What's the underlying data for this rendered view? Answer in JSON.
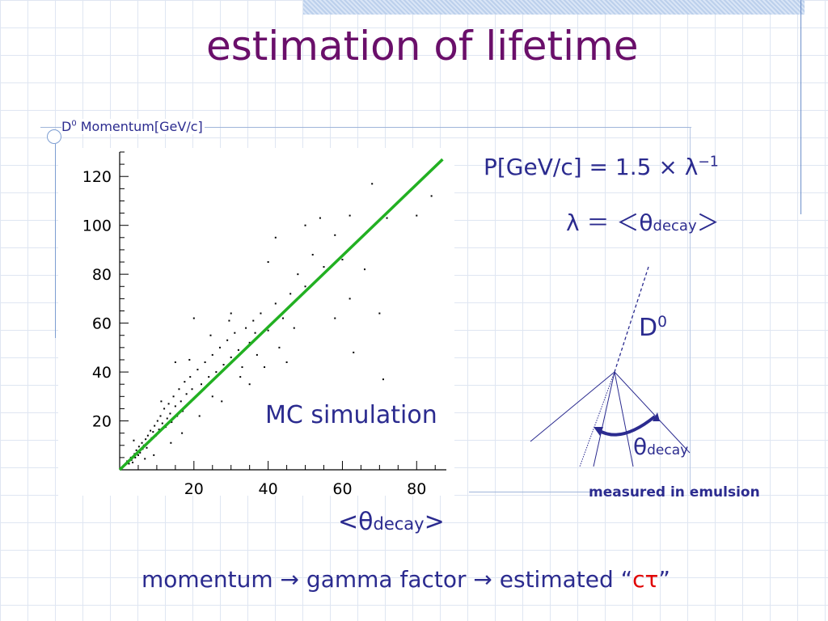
{
  "slide": {
    "title": "estimation of lifetime",
    "mc_label": "MC simulation",
    "formula_momentum": {
      "left": "P[GeV/c] = 1.5 × λ",
      "exponent": "−1"
    },
    "formula_lambda": {
      "prefix": "λ ＝ ＜θ",
      "subscript": "decay",
      "suffix": "＞"
    },
    "diagram": {
      "particle_label": "D",
      "particle_superscript": "0",
      "angle_symbol": "θ",
      "angle_subscript": "decay",
      "caption": "measured in emulsion"
    },
    "bottom_line": {
      "text": "momentum → gamma factor → estimated ",
      "open_quote": "“",
      "highlight": "cτ",
      "close_quote": "”"
    },
    "colors": {
      "title": "#6a0f6a",
      "text": "#2b2b8f",
      "fit_line": "#22b022",
      "highlight": "#e00000"
    }
  },
  "chart_data": {
    "type": "scatter",
    "ylabel": {
      "prefix": "D",
      "superscript": "0",
      "suffix": " Momentum[GeV/c]"
    },
    "xlabel": {
      "prefix": "<θ",
      "subscript": "decay",
      "suffix": ">"
    },
    "xlim": [
      0,
      88
    ],
    "ylim": [
      0,
      130
    ],
    "xticks": [
      20,
      40,
      60,
      80
    ],
    "yticks": [
      20,
      40,
      60,
      80,
      100,
      120
    ],
    "grid": false,
    "fit_line": {
      "x": [
        0,
        87
      ],
      "y": [
        0,
        127
      ]
    },
    "points": [
      [
        1.5,
        2.0
      ],
      [
        2.0,
        3.5
      ],
      [
        2.5,
        2.5
      ],
      [
        3.0,
        5.0
      ],
      [
        3.2,
        4.0
      ],
      [
        3.5,
        3.0
      ],
      [
        4.0,
        6.5
      ],
      [
        4.2,
        5.0
      ],
      [
        4.5,
        8.0
      ],
      [
        5.0,
        6.0
      ],
      [
        5.2,
        9.5
      ],
      [
        5.5,
        7.0
      ],
      [
        6.0,
        11.0
      ],
      [
        6.2,
        8.5
      ],
      [
        6.5,
        10.0
      ],
      [
        7.0,
        12.5
      ],
      [
        7.3,
        9.0
      ],
      [
        7.6,
        14.0
      ],
      [
        8.0,
        11.5
      ],
      [
        8.3,
        16.0
      ],
      [
        8.6,
        13.0
      ],
      [
        9.0,
        15.5
      ],
      [
        9.4,
        18.0
      ],
      [
        9.8,
        14.0
      ],
      [
        10.2,
        20.0
      ],
      [
        10.6,
        16.5
      ],
      [
        11.0,
        22.0
      ],
      [
        11.5,
        19.0
      ],
      [
        12.0,
        25.0
      ],
      [
        12.4,
        17.5
      ],
      [
        12.8,
        21.0
      ],
      [
        13.2,
        27.0
      ],
      [
        13.6,
        23.0
      ],
      [
        14.0,
        19.5
      ],
      [
        14.5,
        30.0
      ],
      [
        15.0,
        26.0
      ],
      [
        15.5,
        22.0
      ],
      [
        16.0,
        33.0
      ],
      [
        16.5,
        28.0
      ],
      [
        17.0,
        24.0
      ],
      [
        17.5,
        36.0
      ],
      [
        18.0,
        31.0
      ],
      [
        18.5,
        27.0
      ],
      [
        19.0,
        38.0
      ],
      [
        19.5,
        33.0
      ],
      [
        20.0,
        29.0
      ],
      [
        21.0,
        41.0
      ],
      [
        22.0,
        35.0
      ],
      [
        23.0,
        44.0
      ],
      [
        24.0,
        38.0
      ],
      [
        25.0,
        47.0
      ],
      [
        26.0,
        40.0
      ],
      [
        27.0,
        50.0
      ],
      [
        28.0,
        43.0
      ],
      [
        29.0,
        53.0
      ],
      [
        30.0,
        46.0
      ],
      [
        31.0,
        56.0
      ],
      [
        32.0,
        49.0
      ],
      [
        33.0,
        42.0
      ],
      [
        34.0,
        58.0
      ],
      [
        35.0,
        52.0
      ],
      [
        36.0,
        61.0
      ],
      [
        37.0,
        47.0
      ],
      [
        38.0,
        64.0
      ],
      [
        40.0,
        57.0
      ],
      [
        42.0,
        68.0
      ],
      [
        44.0,
        62.0
      ],
      [
        46.0,
        72.0
      ],
      [
        48.0,
        80.0
      ],
      [
        50.0,
        75.0
      ],
      [
        52.0,
        88.0
      ],
      [
        55.0,
        83.0
      ],
      [
        58.0,
        96.0
      ],
      [
        60.0,
        86.0
      ],
      [
        62.0,
        104.0
      ],
      [
        65.0,
        95.0
      ],
      [
        68.0,
        117.0
      ],
      [
        72.0,
        103.0
      ],
      [
        80.0,
        104.0
      ],
      [
        84.0,
        112.0
      ],
      [
        15.0,
        44.0
      ],
      [
        20.0,
        62.0
      ],
      [
        25.0,
        30.0
      ],
      [
        30.0,
        64.0
      ],
      [
        35.0,
        35.0
      ],
      [
        42.0,
        95.0
      ],
      [
        45.0,
        44.0
      ],
      [
        50.0,
        100.0
      ],
      [
        54.0,
        103.0
      ],
      [
        58.0,
        62.0
      ],
      [
        62.0,
        70.0
      ],
      [
        63.0,
        48.0
      ],
      [
        70.0,
        64.0
      ],
      [
        71.0,
        37.0
      ],
      [
        66.0,
        82.0
      ],
      [
        40.0,
        85.0
      ],
      [
        3.8,
        12.0
      ],
      [
        6.8,
        4.5
      ],
      [
        9.2,
        6.0
      ],
      [
        11.2,
        28.0
      ],
      [
        13.8,
        11.0
      ],
      [
        16.8,
        15.0
      ],
      [
        18.8,
        45.0
      ],
      [
        21.5,
        22.0
      ],
      [
        24.5,
        55.0
      ],
      [
        27.5,
        28.0
      ],
      [
        29.5,
        61.0
      ],
      [
        32.5,
        38.0
      ],
      [
        36.5,
        56.0
      ],
      [
        39.0,
        42.0
      ],
      [
        43.0,
        50.0
      ],
      [
        47.0,
        58.0
      ]
    ]
  }
}
